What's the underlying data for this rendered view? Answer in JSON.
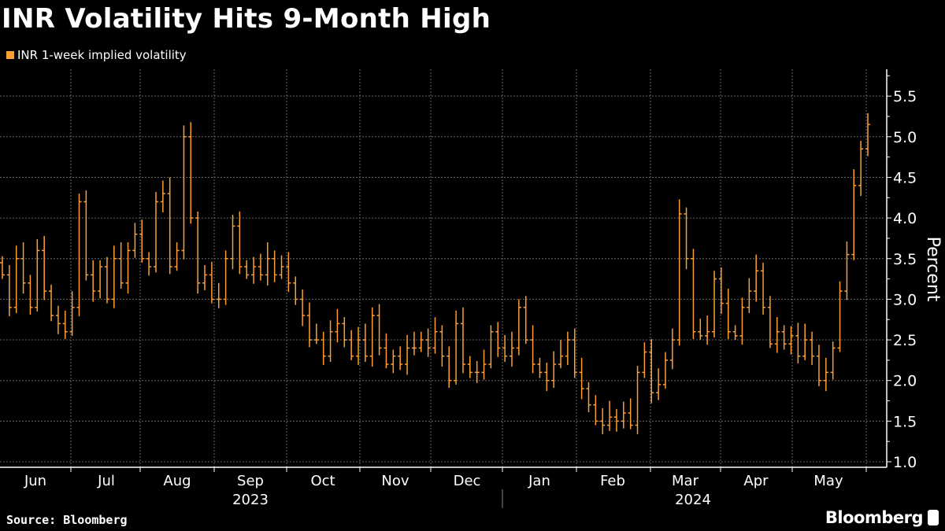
{
  "chart_data": {
    "type": "ohlc-bar",
    "title": "INR Volatility Hits 9-Month High",
    "legend": [
      {
        "label": "INR 1-week implied volatility",
        "color": "#fb9f34"
      }
    ],
    "ylabel": "Percent",
    "xlabel": "",
    "ylim": [
      0.9,
      5.8
    ],
    "yticks": [
      1.0,
      1.5,
      2.0,
      2.5,
      3.0,
      3.5,
      4.0,
      4.5,
      5.0,
      5.5
    ],
    "ytick_labels": [
      "1.0",
      "1.5",
      "2.0",
      "2.5",
      "3.0",
      "3.5",
      "4.0",
      "4.5",
      "5.0",
      "5.5"
    ],
    "months": [
      "Jun",
      "Jul",
      "Aug",
      "Sep",
      "Oct",
      "Nov",
      "Dec",
      "Jan",
      "Feb",
      "Mar",
      "Apr",
      "May"
    ],
    "years": [
      "2023",
      "2024"
    ],
    "grid": true,
    "legend_position": "top-left",
    "series": [
      {
        "name": "INR 1-week implied volatility",
        "close": [
          3.3,
          2.9,
          3.5,
          3.2,
          2.9,
          3.6,
          3.1,
          2.8,
          2.7,
          2.6,
          2.9,
          4.2,
          3.3,
          3.1,
          3.4,
          3.0,
          3.5,
          3.2,
          3.6,
          3.8,
          3.5,
          3.4,
          4.2,
          4.3,
          3.4,
          3.6,
          5.0,
          4.0,
          3.2,
          3.3,
          3.0,
          3.0,
          3.5,
          3.9,
          3.4,
          3.3,
          3.4,
          3.3,
          3.5,
          3.3,
          3.4,
          3.2,
          3.0,
          2.8,
          2.5,
          2.5,
          2.3,
          2.6,
          2.7,
          2.5,
          2.3,
          2.5,
          2.3,
          2.8,
          2.4,
          2.2,
          2.3,
          2.2,
          2.4,
          2.4,
          2.5,
          2.4,
          2.6,
          2.3,
          2.0,
          2.7,
          2.2,
          2.1,
          2.1,
          2.2,
          2.6,
          2.4,
          2.3,
          2.4,
          2.9,
          2.5,
          2.2,
          2.1,
          2.0,
          2.2,
          2.3,
          2.5,
          2.1,
          1.9,
          1.7,
          1.5,
          1.45,
          1.55,
          1.5,
          1.6,
          1.45,
          2.1,
          2.35,
          1.85,
          1.95,
          2.25,
          2.5,
          4.05,
          3.5,
          2.6,
          2.55,
          2.6,
          3.25,
          2.95,
          2.6,
          2.55,
          2.9,
          3.1,
          3.35,
          2.9,
          2.45,
          2.6,
          2.45,
          2.55,
          2.3,
          2.5,
          2.3,
          2.0,
          2.1,
          2.4,
          3.1,
          3.55,
          4.4,
          4.85,
          5.15
        ],
        "open_first": 3.45
      }
    ]
  },
  "source": "Source: Bloomberg",
  "brand": "Bloomberg"
}
